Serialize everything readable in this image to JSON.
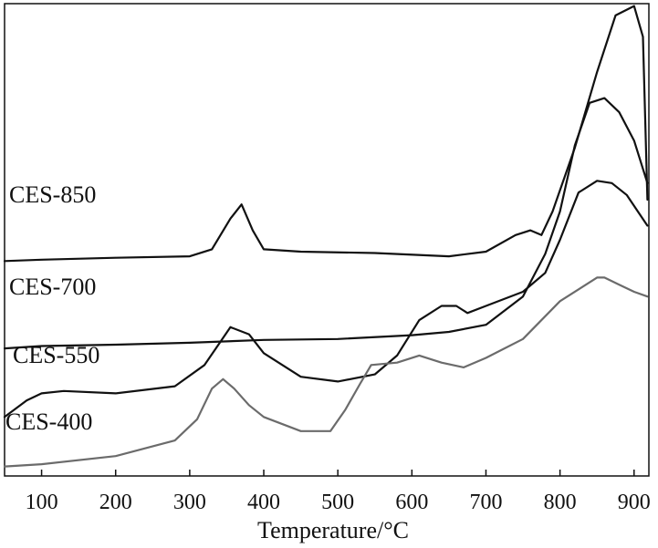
{
  "chart_data": {
    "type": "line",
    "title": "",
    "xlabel": "Temperature/°C",
    "ylabel": "",
    "xlim": [
      50,
      920
    ],
    "ylim": [
      0,
      1
    ],
    "grid": false,
    "legend": "none",
    "x_ticks": [
      100,
      200,
      300,
      400,
      500,
      600,
      700,
      800,
      900
    ],
    "series": [
      {
        "name": "CES-850",
        "color": "#111111",
        "x": [
          50,
          100,
          200,
          300,
          330,
          355,
          370,
          385,
          400,
          450,
          550,
          650,
          700,
          740,
          760,
          775,
          790,
          820,
          850,
          875,
          900,
          912,
          918
        ],
        "y": [
          0.455,
          0.458,
          0.462,
          0.465,
          0.48,
          0.545,
          0.575,
          0.52,
          0.48,
          0.475,
          0.472,
          0.465,
          0.475,
          0.51,
          0.52,
          0.51,
          0.56,
          0.695,
          0.855,
          0.975,
          0.995,
          0.93,
          0.585
        ]
      },
      {
        "name": "CES-700",
        "color": "#111111",
        "x": [
          50,
          100,
          200,
          300,
          400,
          500,
          600,
          650,
          700,
          750,
          780,
          800,
          820,
          840,
          860,
          880,
          900,
          918
        ],
        "y": [
          0.27,
          0.275,
          0.278,
          0.282,
          0.288,
          0.29,
          0.298,
          0.305,
          0.32,
          0.38,
          0.47,
          0.56,
          0.7,
          0.79,
          0.8,
          0.77,
          0.71,
          0.62
        ]
      },
      {
        "name": "CES-550",
        "color": "#111111",
        "x": [
          50,
          80,
          100,
          130,
          200,
          280,
          320,
          355,
          380,
          400,
          450,
          500,
          550,
          580,
          610,
          640,
          660,
          675,
          700,
          750,
          780,
          800,
          825,
          850,
          870,
          890,
          918
        ],
        "y": [
          0.125,
          0.16,
          0.175,
          0.18,
          0.175,
          0.19,
          0.235,
          0.315,
          0.3,
          0.26,
          0.21,
          0.2,
          0.215,
          0.255,
          0.33,
          0.36,
          0.36,
          0.345,
          0.36,
          0.39,
          0.43,
          0.5,
          0.6,
          0.625,
          0.62,
          0.595,
          0.53
        ]
      },
      {
        "name": "CES-400",
        "color": "#6b6b6b",
        "x": [
          50,
          100,
          200,
          280,
          310,
          330,
          345,
          360,
          380,
          400,
          450,
          490,
          510,
          530,
          545,
          580,
          610,
          640,
          670,
          700,
          750,
          800,
          850,
          860,
          880,
          900,
          918
        ],
        "y": [
          0.02,
          0.025,
          0.042,
          0.075,
          0.12,
          0.185,
          0.205,
          0.185,
          0.15,
          0.125,
          0.095,
          0.095,
          0.14,
          0.195,
          0.235,
          0.24,
          0.255,
          0.24,
          0.23,
          0.25,
          0.29,
          0.37,
          0.42,
          0.42,
          0.405,
          0.39,
          0.38
        ]
      }
    ]
  }
}
